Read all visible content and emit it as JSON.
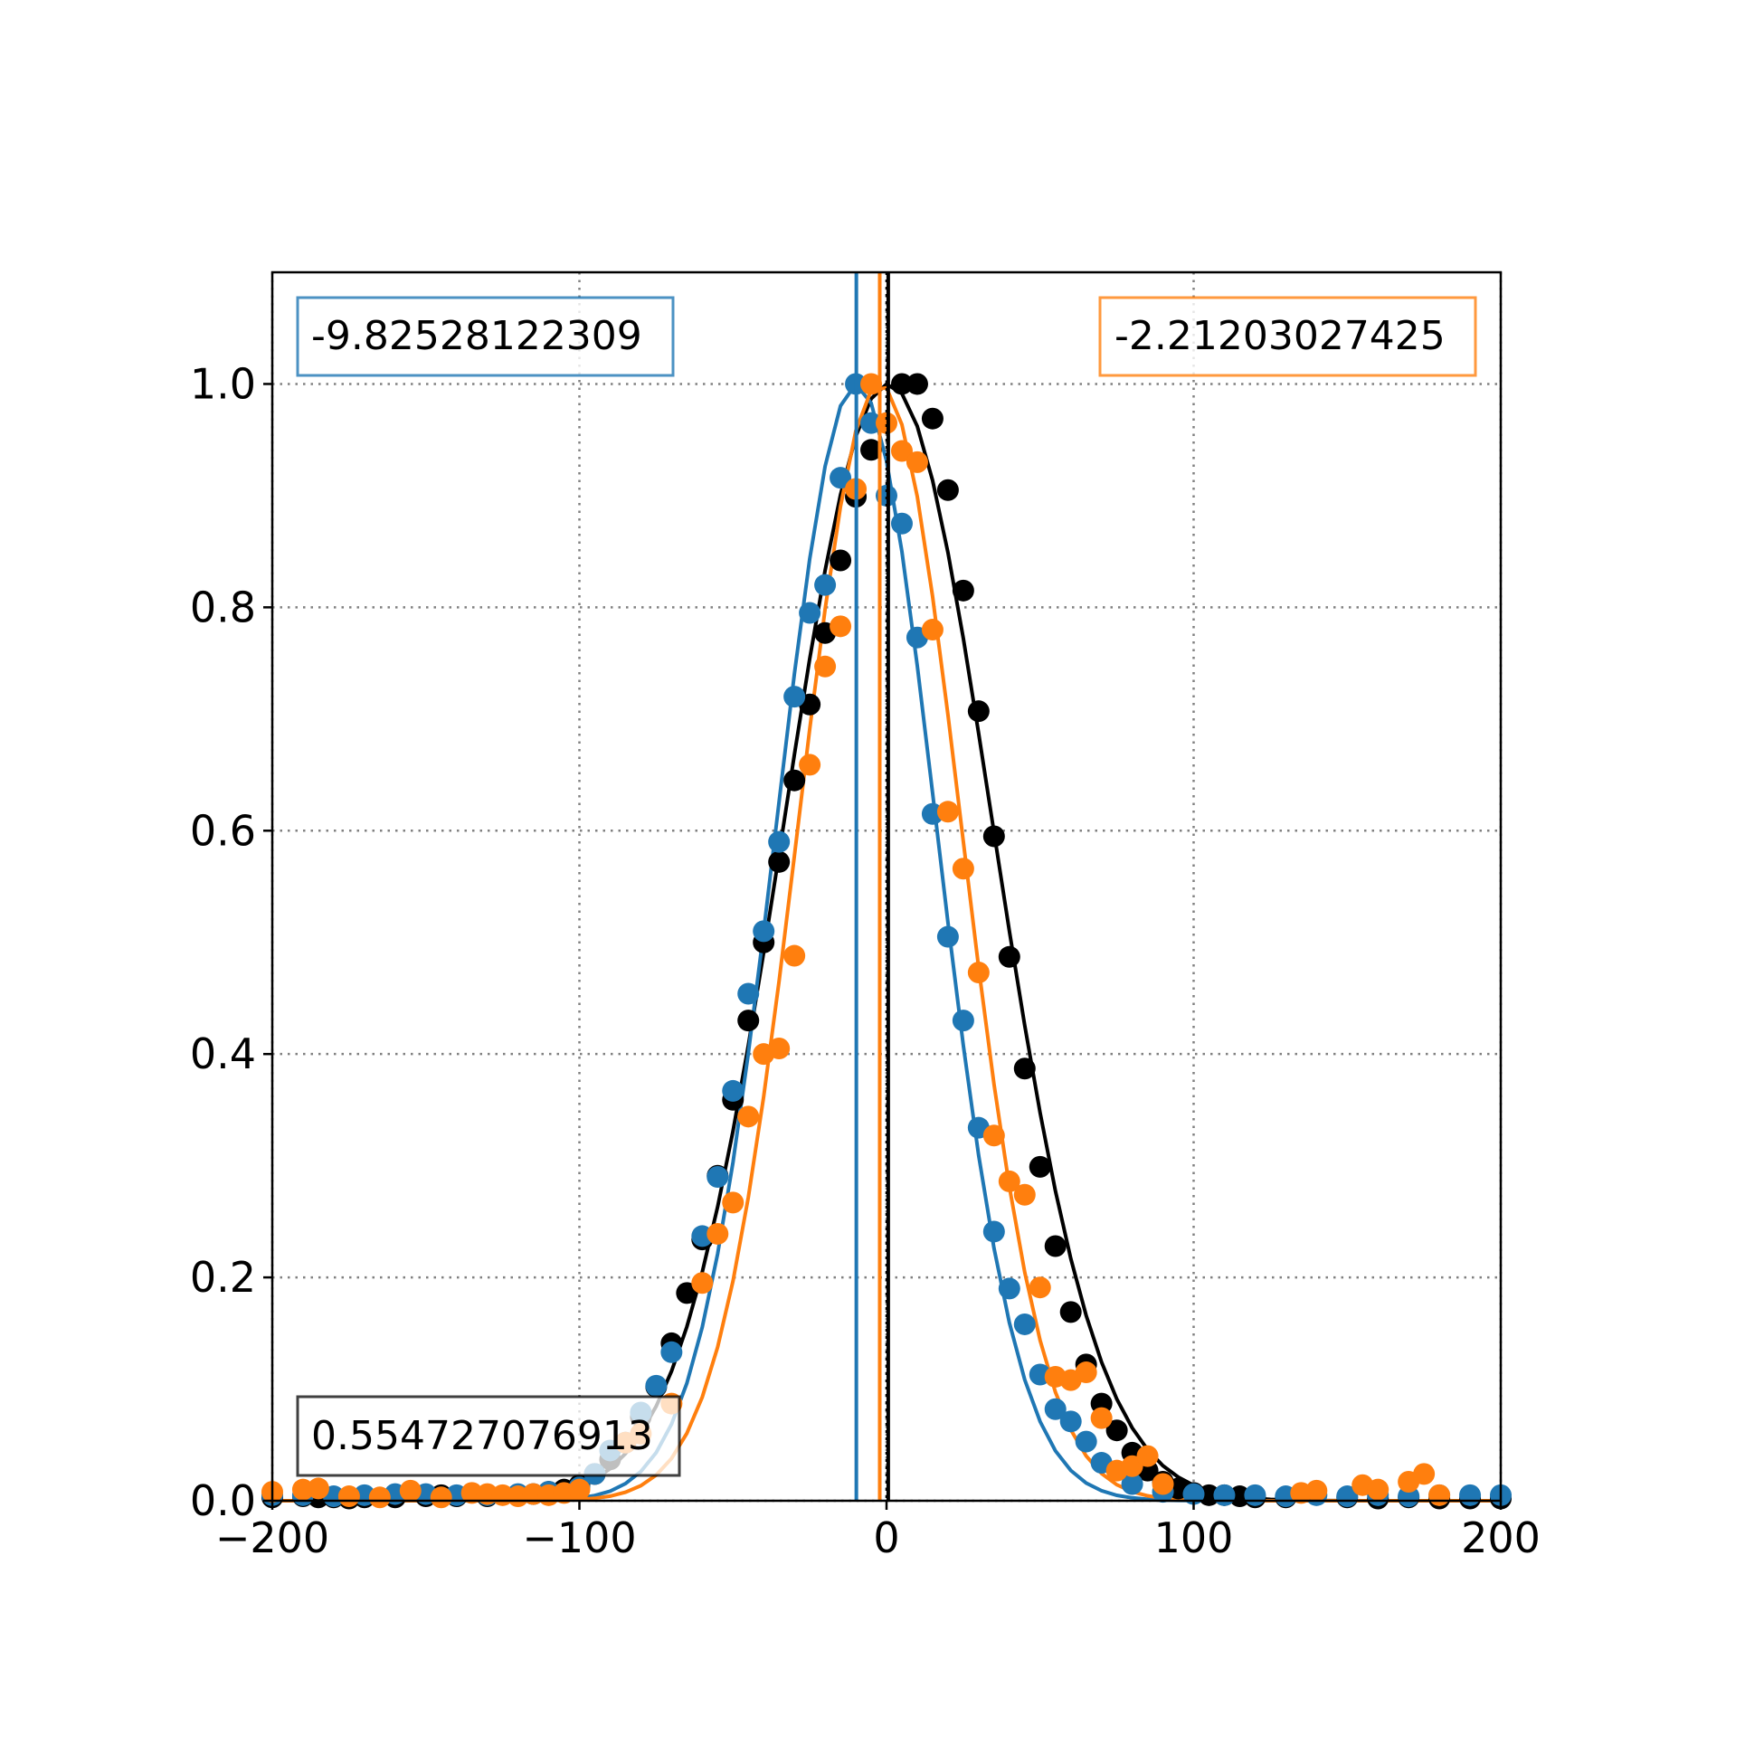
{
  "chart_data": {
    "type": "scatter",
    "title": "",
    "xlabel": "",
    "ylabel": "",
    "xlim": [
      -200,
      200
    ],
    "ylim": [
      0,
      1.1
    ],
    "xticks": [
      -200,
      -100,
      0,
      100,
      200
    ],
    "xtick_labels": [
      "−200",
      "−100",
      "0",
      "100",
      "200"
    ],
    "yticks": [
      0.0,
      0.2,
      0.4,
      0.6,
      0.8,
      1.0
    ],
    "ytick_labels": [
      "0.0",
      "0.2",
      "0.4",
      "0.6",
      "0.8",
      "1.0"
    ],
    "grid": true,
    "grid_style": "dotted",
    "colors": {
      "blue": "#1f77b4",
      "orange": "#ff7f0e",
      "black": "#000000",
      "grid": "#808080"
    },
    "series": [
      {
        "color": "#000000",
        "points": [
          [
            -200,
            0.003
          ],
          [
            -190,
            0.004
          ],
          [
            -185,
            0.003
          ],
          [
            -180,
            0.003
          ],
          [
            -175,
            0.002
          ],
          [
            -170,
            0.003
          ],
          [
            -160,
            0.003
          ],
          [
            -150,
            0.004
          ],
          [
            -145,
            0.005
          ],
          [
            -140,
            0.004
          ],
          [
            -130,
            0.004
          ],
          [
            -120,
            0.005
          ],
          [
            -115,
            0.006
          ],
          [
            -110,
            0.008
          ],
          [
            -105,
            0.01
          ],
          [
            -100,
            0.014
          ],
          [
            -95,
            0.024
          ],
          [
            -90,
            0.037
          ],
          [
            -85,
            0.052
          ],
          [
            -80,
            0.075
          ],
          [
            -75,
            0.102
          ],
          [
            -70,
            0.141
          ],
          [
            -65,
            0.186
          ],
          [
            -60,
            0.234
          ],
          [
            -55,
            0.291
          ],
          [
            -50,
            0.359
          ],
          [
            -45,
            0.43
          ],
          [
            -40,
            0.5
          ],
          [
            -35,
            0.572
          ],
          [
            -30,
            0.645
          ],
          [
            -25,
            0.713
          ],
          [
            -20,
            0.777
          ],
          [
            -15,
            0.842
          ],
          [
            -10,
            0.899
          ],
          [
            -5,
            0.941
          ],
          [
            5,
            1.0
          ],
          [
            10,
            1.0
          ],
          [
            15,
            0.969
          ],
          [
            20,
            0.905
          ],
          [
            25,
            0.815
          ],
          [
            30,
            0.707
          ],
          [
            35,
            0.595
          ],
          [
            40,
            0.487
          ],
          [
            45,
            0.387
          ],
          [
            50,
            0.299
          ],
          [
            55,
            0.228
          ],
          [
            60,
            0.169
          ],
          [
            65,
            0.122
          ],
          [
            70,
            0.087
          ],
          [
            75,
            0.063
          ],
          [
            80,
            0.043
          ],
          [
            85,
            0.027
          ],
          [
            90,
            0.017
          ],
          [
            95,
            0.011
          ],
          [
            100,
            0.007
          ],
          [
            105,
            0.005
          ],
          [
            110,
            0.005
          ],
          [
            115,
            0.004
          ],
          [
            120,
            0.003
          ],
          [
            130,
            0.003
          ],
          [
            150,
            0.003
          ],
          [
            160,
            0.002
          ],
          [
            170,
            0.003
          ],
          [
            180,
            0.002
          ],
          [
            190,
            0.002
          ],
          [
            200,
            0.002
          ]
        ],
        "fit": {
          "mu": 0.554727076913,
          "sigma": 34
        },
        "mean_label": "0.554727076913"
      },
      {
        "color": "#1f77b4",
        "points": [
          [
            -200,
            0.005
          ],
          [
            -190,
            0.005
          ],
          [
            -180,
            0.004
          ],
          [
            -170,
            0.005
          ],
          [
            -160,
            0.006
          ],
          [
            -150,
            0.006
          ],
          [
            -140,
            0.005
          ],
          [
            -130,
            0.005
          ],
          [
            -120,
            0.006
          ],
          [
            -110,
            0.008
          ],
          [
            -100,
            0.012
          ],
          [
            -95,
            0.024
          ],
          [
            -90,
            0.045
          ],
          [
            -80,
            0.079
          ],
          [
            -75,
            0.103
          ],
          [
            -70,
            0.133
          ],
          [
            -60,
            0.237
          ],
          [
            -55,
            0.29
          ],
          [
            -50,
            0.367
          ],
          [
            -45,
            0.454
          ],
          [
            -40,
            0.51
          ],
          [
            -35,
            0.59
          ],
          [
            -30,
            0.72
          ],
          [
            -25,
            0.795
          ],
          [
            -20,
            0.82
          ],
          [
            -15,
            0.916
          ],
          [
            -10,
            1.0
          ],
          [
            -5,
            0.965
          ],
          [
            0,
            0.9
          ],
          [
            5,
            0.875
          ],
          [
            10,
            0.773
          ],
          [
            15,
            0.615
          ],
          [
            20,
            0.505
          ],
          [
            25,
            0.43
          ],
          [
            30,
            0.334
          ],
          [
            35,
            0.241
          ],
          [
            40,
            0.19
          ],
          [
            45,
            0.158
          ],
          [
            50,
            0.113
          ],
          [
            55,
            0.082
          ],
          [
            60,
            0.071
          ],
          [
            65,
            0.053
          ],
          [
            70,
            0.034
          ],
          [
            80,
            0.015
          ],
          [
            90,
            0.008
          ],
          [
            100,
            0.006
          ],
          [
            110,
            0.005
          ],
          [
            120,
            0.005
          ],
          [
            130,
            0.004
          ],
          [
            140,
            0.005
          ],
          [
            150,
            0.004
          ],
          [
            160,
            0.005
          ],
          [
            170,
            0.004
          ],
          [
            180,
            0.005
          ],
          [
            190,
            0.005
          ],
          [
            200,
            0.005
          ]
        ],
        "fit": {
          "mu": -9.82528122309,
          "sigma": 26
        },
        "mean_label": "-9.82528122309"
      },
      {
        "color": "#ff7f0e",
        "points": [
          [
            -200,
            0.008
          ],
          [
            -190,
            0.01
          ],
          [
            -185,
            0.011
          ],
          [
            -175,
            0.004
          ],
          [
            -165,
            0.003
          ],
          [
            -155,
            0.009
          ],
          [
            -145,
            0.003
          ],
          [
            -135,
            0.007
          ],
          [
            -130,
            0.006
          ],
          [
            -125,
            0.005
          ],
          [
            -120,
            0.004
          ],
          [
            -115,
            0.006
          ],
          [
            -110,
            0.005
          ],
          [
            -105,
            0.007
          ],
          [
            -100,
            0.01
          ],
          [
            -85,
            0.052
          ],
          [
            -80,
            0.06
          ],
          [
            -70,
            0.087
          ],
          [
            -60,
            0.195
          ],
          [
            -55,
            0.239
          ],
          [
            -50,
            0.267
          ],
          [
            -45,
            0.344
          ],
          [
            -40,
            0.4
          ],
          [
            -35,
            0.405
          ],
          [
            -30,
            0.488
          ],
          [
            -25,
            0.659
          ],
          [
            -20,
            0.747
          ],
          [
            -15,
            0.783
          ],
          [
            -10,
            0.906
          ],
          [
            -5,
            1.0
          ],
          [
            0,
            0.965
          ],
          [
            5,
            0.94
          ],
          [
            10,
            0.93
          ],
          [
            15,
            0.78
          ],
          [
            20,
            0.617
          ],
          [
            25,
            0.566
          ],
          [
            30,
            0.473
          ],
          [
            35,
            0.327
          ],
          [
            40,
            0.286
          ],
          [
            45,
            0.274
          ],
          [
            50,
            0.191
          ],
          [
            55,
            0.111
          ],
          [
            60,
            0.108
          ],
          [
            65,
            0.115
          ],
          [
            70,
            0.074
          ],
          [
            75,
            0.027
          ],
          [
            80,
            0.031
          ],
          [
            85,
            0.04
          ],
          [
            90,
            0.015
          ],
          [
            135,
            0.007
          ],
          [
            140,
            0.009
          ],
          [
            155,
            0.014
          ],
          [
            160,
            0.01
          ],
          [
            170,
            0.017
          ],
          [
            175,
            0.024
          ],
          [
            180,
            0.005
          ]
        ],
        "fit": {
          "mu": -2.21203027425,
          "sigma": 26.5
        },
        "mean_label": "-2.21203027425"
      }
    ],
    "reference_line_x": 0
  }
}
